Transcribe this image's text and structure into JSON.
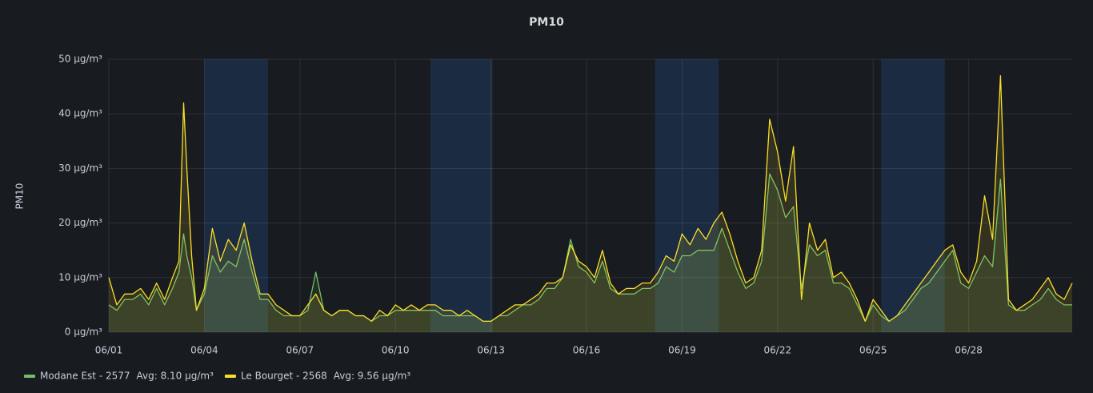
{
  "chart_data": {
    "type": "line",
    "title": "PM10",
    "y_label": "PM10",
    "x": [
      1,
      1.25,
      1.5,
      1.75,
      2,
      2.25,
      2.5,
      2.75,
      3,
      3.2,
      3.35,
      3.45,
      3.6,
      3.75,
      4,
      4.25,
      4.5,
      4.75,
      5,
      5.25,
      5.5,
      5.75,
      6,
      6.25,
      6.5,
      6.75,
      7,
      7.25,
      7.5,
      7.75,
      8,
      8.25,
      8.5,
      8.75,
      9,
      9.25,
      9.5,
      9.75,
      10,
      10.25,
      10.5,
      10.75,
      11,
      11.25,
      11.5,
      11.75,
      12,
      12.25,
      12.5,
      12.75,
      13,
      13.25,
      13.5,
      13.75,
      14,
      14.25,
      14.5,
      14.75,
      15,
      15.25,
      15.5,
      15.75,
      16,
      16.25,
      16.5,
      16.75,
      17,
      17.25,
      17.5,
      17.75,
      18,
      18.25,
      18.5,
      18.75,
      19,
      19.25,
      19.5,
      19.75,
      20,
      20.25,
      20.5,
      20.75,
      21,
      21.25,
      21.5,
      21.75,
      22,
      22.25,
      22.5,
      22.75,
      23,
      23.25,
      23.5,
      23.75,
      24,
      24.25,
      24.5,
      24.75,
      25,
      25.25,
      25.5,
      25.75,
      26,
      26.25,
      26.5,
      26.75,
      27,
      27.25,
      27.5,
      27.75,
      28,
      28.25,
      28.5,
      28.75,
      29,
      29.25,
      29.5,
      29.75,
      30,
      30.25,
      30.5,
      30.75,
      31,
      31.25
    ],
    "series": [
      {
        "name": "Modane Est - 2577",
        "avg": "Avg: 8.10 µg/m³",
        "color": "#73bf69",
        "values": [
          5,
          4,
          6,
          6,
          7,
          5,
          8,
          5,
          8,
          11,
          18,
          14,
          10,
          4,
          7,
          14,
          11,
          13,
          12,
          17,
          11,
          6,
          6,
          4,
          3,
          3,
          3,
          4,
          11,
          4,
          3,
          4,
          4,
          3,
          3,
          2,
          3,
          3,
          4,
          4,
          4,
          4,
          4,
          4,
          3,
          3,
          3,
          3,
          3,
          2,
          2,
          3,
          3,
          4,
          5,
          5,
          6,
          8,
          8,
          10,
          17,
          12,
          11,
          9,
          13,
          8,
          7,
          7,
          7,
          8,
          8,
          9,
          12,
          11,
          14,
          14,
          15,
          15,
          15,
          19,
          15,
          11,
          8,
          9,
          13,
          29,
          26,
          21,
          23,
          8,
          16,
          14,
          15,
          9,
          9,
          8,
          5,
          2,
          5,
          3,
          2,
          3,
          4,
          6,
          8,
          9,
          11,
          13,
          15,
          9,
          8,
          11,
          14,
          12,
          28,
          5,
          4,
          4,
          5,
          6,
          8,
          6,
          5,
          5
        ]
      },
      {
        "name": "Le Bourget - 2568",
        "avg": "Avg: 9.56 µg/m³",
        "color": "#fade2a",
        "values": [
          10,
          5,
          7,
          7,
          8,
          6,
          9,
          6,
          10,
          13,
          42,
          30,
          14,
          4,
          8,
          19,
          13,
          17,
          15,
          20,
          13,
          7,
          7,
          5,
          4,
          3,
          3,
          5,
          7,
          4,
          3,
          4,
          4,
          3,
          3,
          2,
          4,
          3,
          5,
          4,
          5,
          4,
          5,
          5,
          4,
          4,
          3,
          4,
          3,
          2,
          2,
          3,
          4,
          5,
          5,
          6,
          7,
          9,
          9,
          10,
          16,
          13,
          12,
          10,
          15,
          9,
          7,
          8,
          8,
          9,
          9,
          11,
          14,
          13,
          18,
          16,
          19,
          17,
          20,
          22,
          18,
          13,
          9,
          10,
          15,
          39,
          33,
          24,
          34,
          6,
          20,
          15,
          17,
          10,
          11,
          9,
          6,
          2,
          6,
          4,
          2,
          3,
          5,
          7,
          9,
          11,
          13,
          15,
          16,
          11,
          9,
          13,
          25,
          17,
          47,
          6,
          4,
          5,
          6,
          8,
          10,
          7,
          6,
          9
        ]
      }
    ],
    "xlim": [
      1,
      31.25
    ],
    "xticks": [
      {
        "value": 1,
        "label": "06/01"
      },
      {
        "value": 4,
        "label": "06/04"
      },
      {
        "value": 7,
        "label": "06/07"
      },
      {
        "value": 10,
        "label": "06/10"
      },
      {
        "value": 13,
        "label": "06/13"
      },
      {
        "value": 16,
        "label": "06/16"
      },
      {
        "value": 19,
        "label": "06/19"
      },
      {
        "value": 22,
        "label": "06/22"
      },
      {
        "value": 25,
        "label": "06/25"
      },
      {
        "value": 28,
        "label": "06/28"
      }
    ],
    "ylim": [
      0,
      50
    ],
    "yticks": [
      {
        "value": 0,
        "label": "0 µg/m³"
      },
      {
        "value": 10,
        "label": "10 µg/m³"
      },
      {
        "value": 20,
        "label": "20 µg/m³"
      },
      {
        "value": 30,
        "label": "30 µg/m³"
      },
      {
        "value": 40,
        "label": "40 µg/m³"
      },
      {
        "value": 50,
        "label": "50 µg/m³"
      }
    ],
    "time_regions": [
      [
        4,
        6
      ],
      [
        11.1,
        13.05
      ],
      [
        18.15,
        20.15
      ],
      [
        25.25,
        27.25
      ]
    ],
    "region_color": "#1f3a5f",
    "grid": true,
    "legend": "bottom-left"
  }
}
